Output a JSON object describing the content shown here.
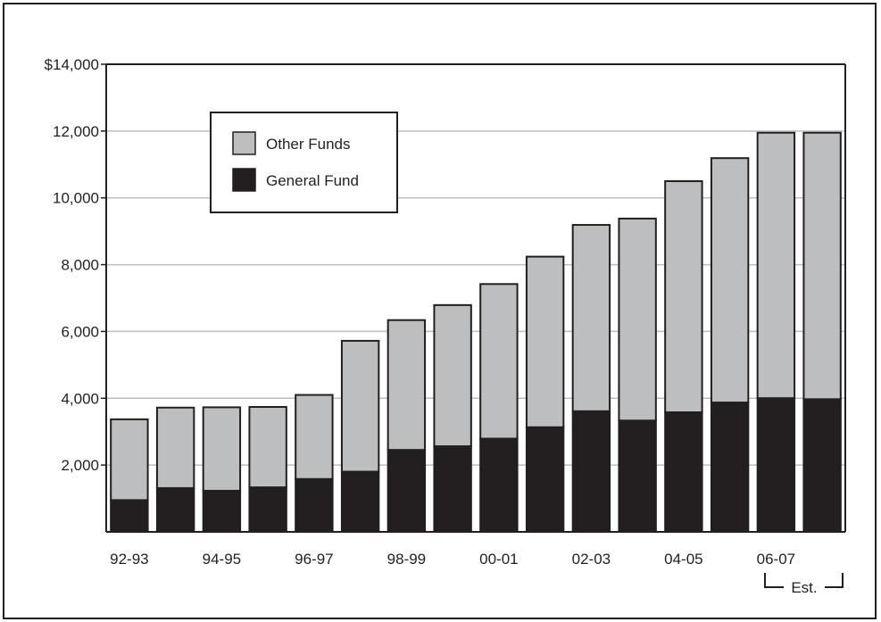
{
  "chart_data": {
    "type": "bar",
    "stacked": true,
    "categories": [
      "92-93",
      "93-94",
      "94-95",
      "95-96",
      "96-97",
      "97-98",
      "98-99",
      "99-00",
      "00-01",
      "01-02",
      "02-03",
      "03-04",
      "04-05",
      "05-06",
      "06-07",
      "07-08"
    ],
    "x_tick_labels": [
      "92-93",
      "94-95",
      "96-97",
      "98-99",
      "00-01",
      "02-03",
      "04-05",
      "06-07"
    ],
    "series": [
      {
        "name": "General Fund",
        "values": [
          950,
          1310,
          1230,
          1330,
          1580,
          1800,
          2450,
          2560,
          2790,
          3130,
          3610,
          3330,
          3580,
          3870,
          4000,
          3970
        ]
      },
      {
        "name": "Other Funds",
        "values": [
          2420,
          2410,
          2500,
          2410,
          2520,
          3920,
          3890,
          4230,
          4630,
          5110,
          5580,
          6050,
          6920,
          7320,
          7950,
          7980
        ]
      }
    ],
    "ylim": [
      0,
      14000
    ],
    "y_ticks": [
      2000,
      4000,
      6000,
      8000,
      10000,
      12000,
      14000
    ],
    "y_tick_labels": [
      "2,000",
      "4,000",
      "6,000",
      "8,000",
      "10,000",
      "12,000",
      "$14,000"
    ],
    "grid": true,
    "legend": {
      "position": "top-left",
      "entries": [
        "Other Funds",
        "General Fund"
      ]
    },
    "annotation": "Est.",
    "colors": {
      "Other Funds": "#bcbec0",
      "General Fund": "#231f20",
      "gridline": "#bcbec0",
      "axis": "#231f20"
    }
  }
}
